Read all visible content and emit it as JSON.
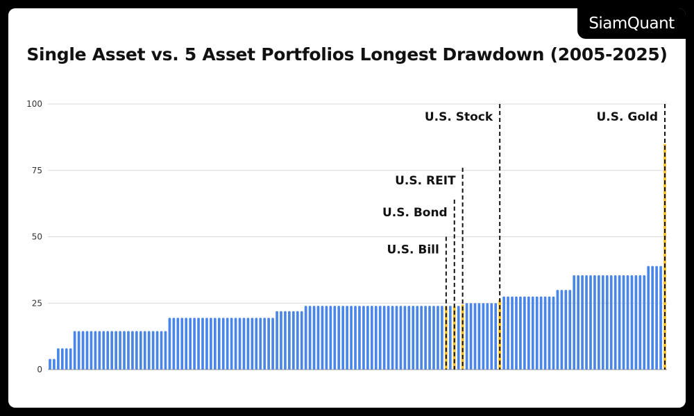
{
  "brand": "SiamQuant",
  "chart_data": {
    "type": "bar",
    "title": "Single Asset vs. 5 Asset Portfolios Longest Drawdown  (2005-2025)",
    "xlabel": "",
    "ylabel": "",
    "ylim": [
      0,
      100
    ],
    "yticks": [
      0,
      25,
      50,
      75,
      100
    ],
    "grid": true,
    "colors": {
      "default": "#4a86e8",
      "highlight": "#f6c026"
    },
    "groups": [
      {
        "value": 4,
        "count": 2
      },
      {
        "value": 8,
        "count": 4
      },
      {
        "value": 14.5,
        "count": 23
      },
      {
        "value": 19.5,
        "count": 26
      },
      {
        "value": 22,
        "count": 7
      },
      {
        "value": 24,
        "count": 34
      },
      {
        "value": 24,
        "count": 1,
        "highlight": "U.S. Bill"
      },
      {
        "value": 24,
        "count": 1
      },
      {
        "value": 24,
        "count": 1,
        "highlight": "U.S. Bond"
      },
      {
        "value": 24,
        "count": 1
      },
      {
        "value": 24.5,
        "count": 1,
        "highlight": "U.S. REIT"
      },
      {
        "value": 25,
        "count": 8
      },
      {
        "value": 26.5,
        "count": 1,
        "highlight": "U.S. Stock"
      },
      {
        "value": 27.5,
        "count": 13
      },
      {
        "value": 30,
        "count": 4
      },
      {
        "value": 35.5,
        "count": 18
      },
      {
        "value": 39,
        "count": 4
      },
      {
        "value": 85,
        "count": 1,
        "highlight": "U.S. Gold"
      }
    ],
    "annotations": [
      {
        "label": "U.S. Bill",
        "line_top": 50
      },
      {
        "label": "U.S. Bond",
        "line_top": 64
      },
      {
        "label": "U.S. REIT",
        "line_top": 76
      },
      {
        "label": "U.S. Stock",
        "line_top": 100
      },
      {
        "label": "U.S. Gold",
        "line_top": 100
      }
    ]
  }
}
